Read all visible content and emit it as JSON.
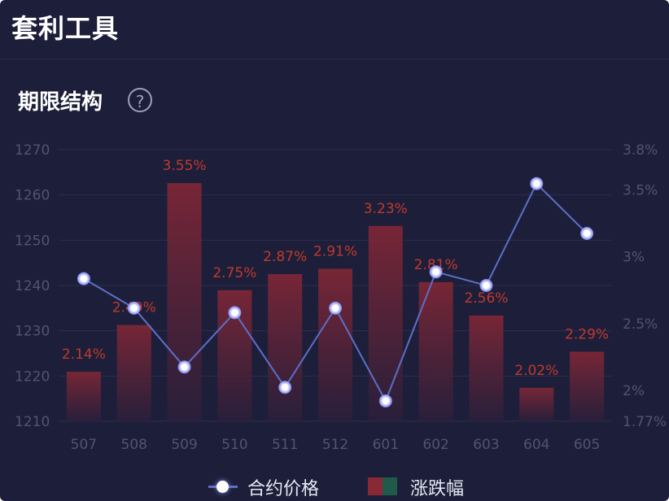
{
  "header": {
    "title": "套利工具"
  },
  "section": {
    "title": "期限结构",
    "help_icon": "question-circle-icon"
  },
  "legend": {
    "line_label": "合约价格",
    "bar_label": "涨跌幅"
  },
  "colors": {
    "background": "#1d1f3a",
    "bar": "#7a2534",
    "line": "#5c6fc7",
    "label": "#c0392b",
    "axis_text": "#4f5470"
  },
  "chart_data": {
    "type": "bar",
    "categories": [
      "507",
      "508",
      "509",
      "510",
      "511",
      "512",
      "601",
      "602",
      "603",
      "604",
      "605"
    ],
    "series": [
      {
        "name": "合约价格",
        "type": "line",
        "axis": "left",
        "values": [
          1241.5,
          1235,
          1222,
          1234,
          1217.5,
          1235,
          1214.5,
          1243,
          1240,
          1262.5,
          1251.5
        ]
      },
      {
        "name": "涨跌幅",
        "type": "bar",
        "axis": "right",
        "values": [
          2.14,
          2.49,
          3.55,
          2.75,
          2.87,
          2.91,
          3.23,
          2.81,
          2.56,
          2.02,
          2.29
        ],
        "labels": [
          "2.14%",
          "2.49%",
          "3.55%",
          "2.75%",
          "2.87%",
          "2.91%",
          "3.23%",
          "2.81%",
          "2.56%",
          "2.02%",
          "2.29%"
        ]
      }
    ],
    "y_left": {
      "ticks": [
        "1210",
        "1220",
        "1230",
        "1240",
        "1250",
        "1260",
        "1270"
      ],
      "range": [
        1210,
        1270
      ]
    },
    "y_right": {
      "ticks": [
        "1.77%",
        "2%",
        "2.5%",
        "3%",
        "3.5%",
        "3.8%"
      ],
      "tick_values": [
        1.77,
        2,
        2.5,
        3,
        3.5,
        3.8
      ],
      "range": [
        1.77,
        3.8
      ]
    },
    "grid": true,
    "legend_position": "bottom"
  }
}
